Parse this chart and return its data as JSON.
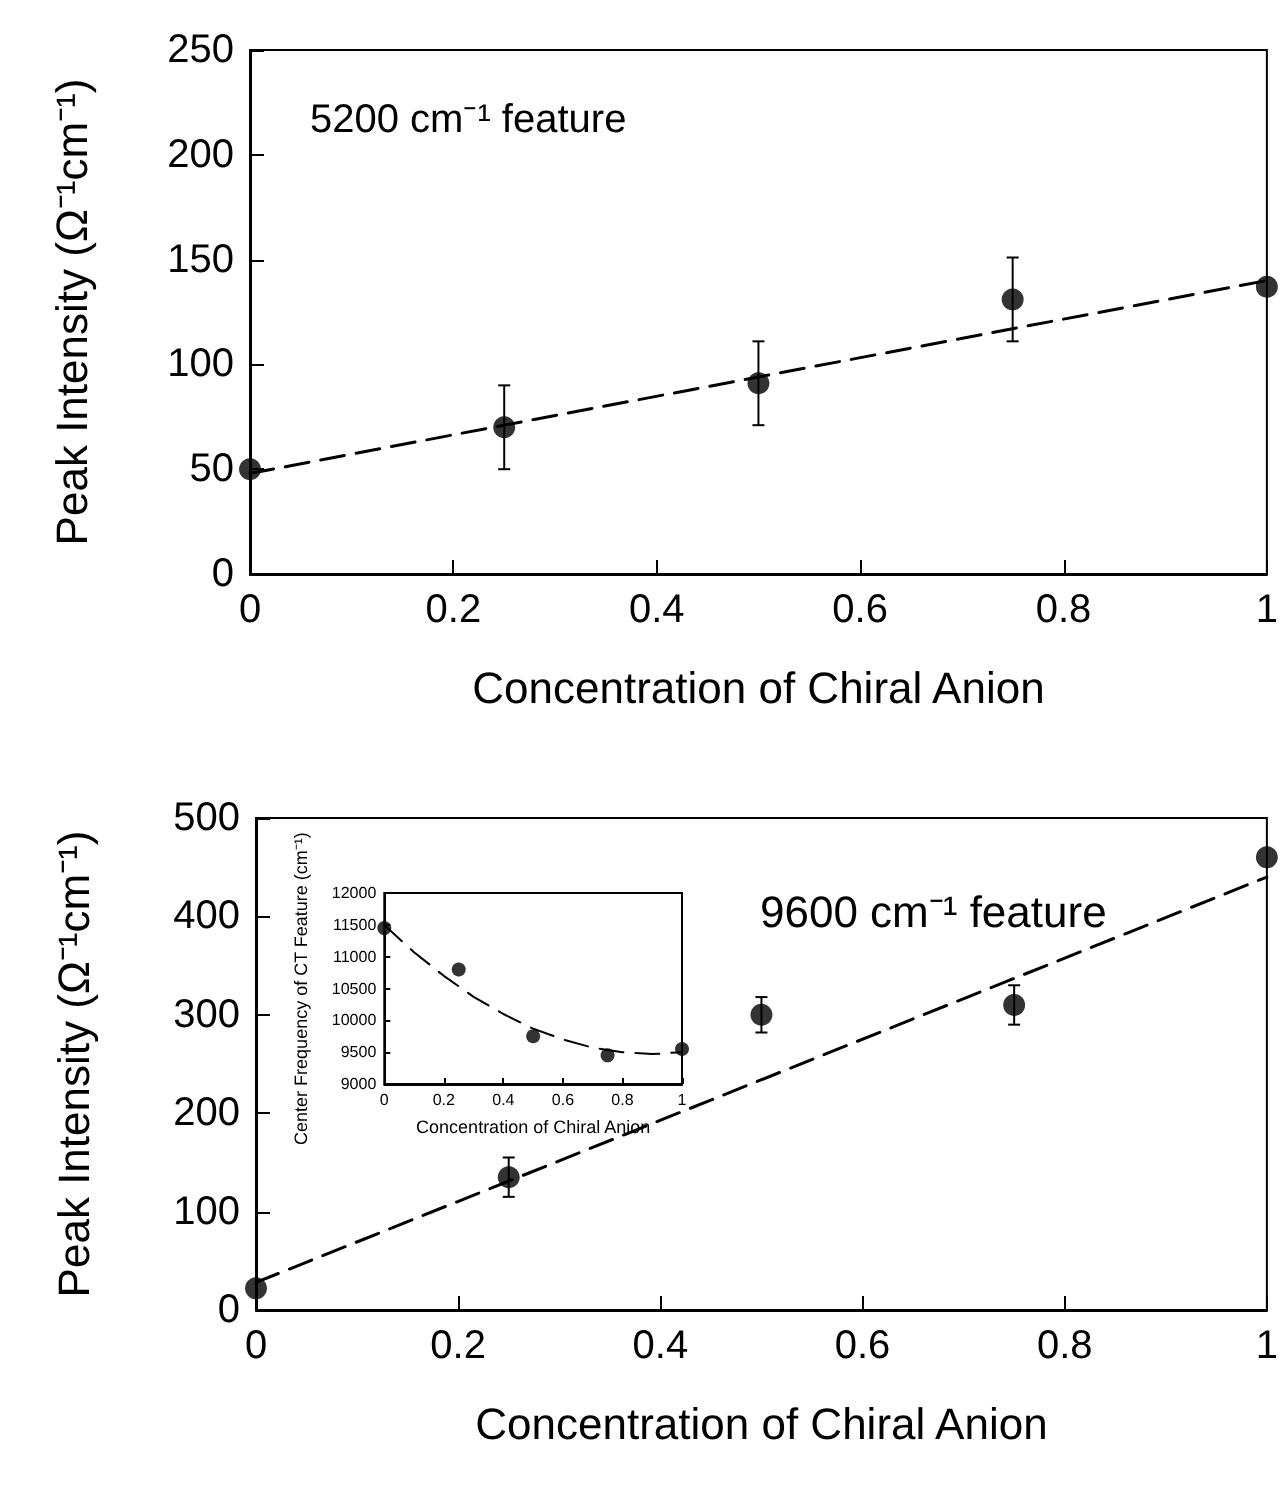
{
  "chart_data": [
    {
      "type": "scatter",
      "xlabel": "Concentration of Chiral Anion",
      "ylabel": "Peak Intensity (Ω⁻¹cm⁻¹)",
      "annotations": [
        "5200 cm⁻¹ feature"
      ],
      "xlim": [
        0,
        1
      ],
      "xticks": [
        0,
        0.2,
        0.4,
        0.6,
        0.8,
        1
      ],
      "ylim": [
        0,
        250
      ],
      "yticks": [
        0,
        50,
        100,
        150,
        200,
        250
      ],
      "series": [
        {
          "type": "scatter",
          "color": "#000000",
          "marker": "circle",
          "x": [
            0,
            0.25,
            0.5,
            0.75,
            1
          ],
          "values": [
            50,
            70,
            91,
            131,
            137
          ],
          "errors": [
            null,
            20,
            20,
            20,
            null
          ]
        },
        {
          "type": "line",
          "color": "#000000",
          "marker": "none",
          "line_style": "dashed",
          "x": [
            0,
            1
          ],
          "values": [
            48,
            140
          ]
        }
      ]
    },
    {
      "type": "scatter",
      "xlabel": "Concentration of Chiral Anion",
      "ylabel": "Peak Intensity (Ω⁻¹cm⁻¹)",
      "annotations": [
        "9600 cm⁻¹ feature"
      ],
      "xlim": [
        0,
        1
      ],
      "xticks": [
        0,
        0.2,
        0.4,
        0.6,
        0.8,
        1
      ],
      "ylim": [
        0,
        500
      ],
      "yticks": [
        0,
        100,
        200,
        300,
        400,
        500
      ],
      "series": [
        {
          "type": "scatter",
          "color": "#000000",
          "marker": "circle",
          "x": [
            0,
            0.25,
            0.5,
            0.75,
            1
          ],
          "values": [
            22,
            135,
            300,
            310,
            460
          ],
          "errors": [
            null,
            20,
            18,
            20,
            null
          ]
        },
        {
          "type": "line",
          "color": "#000000",
          "marker": "none",
          "line_style": "dashed",
          "x": [
            0,
            1
          ],
          "values": [
            28,
            440
          ]
        }
      ]
    },
    {
      "type": "scatter",
      "xlabel": "Concentration of Chiral Anion",
      "ylabel": "Center Frequency of CT Feature (cm⁻¹)",
      "xlim": [
        0,
        1
      ],
      "xticks": [
        0,
        0.2,
        0.4,
        0.6,
        0.8,
        1
      ],
      "ylim": [
        9000,
        12000
      ],
      "yticks": [
        9000,
        9500,
        10000,
        10500,
        11000,
        11500,
        12000
      ],
      "series": [
        {
          "type": "scatter",
          "color": "#000000",
          "marker": "circle",
          "x": [
            0,
            0.25,
            0.5,
            0.75,
            1
          ],
          "values": [
            11450,
            10800,
            9750,
            9450,
            9550
          ]
        },
        {
          "type": "line",
          "color": "#000000",
          "marker": "none",
          "line_style": "dashed",
          "x": [
            0,
            0.1,
            0.2,
            0.3,
            0.4,
            0.5,
            0.6,
            0.7,
            0.8,
            0.9,
            1
          ],
          "values": [
            11500,
            11070,
            10700,
            10370,
            10100,
            9870,
            9700,
            9570,
            9500,
            9470,
            9500
          ]
        }
      ]
    }
  ]
}
